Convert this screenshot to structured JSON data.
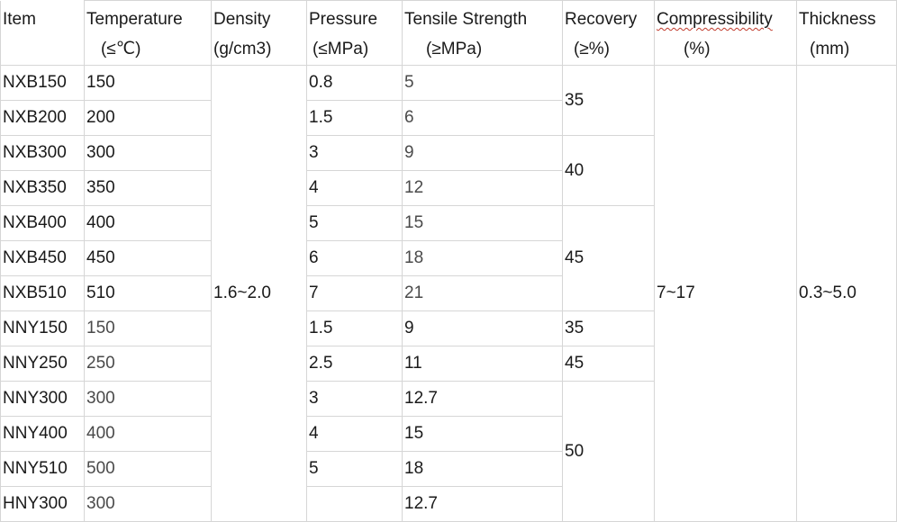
{
  "headers": [
    {
      "line1": "Item",
      "line2": ""
    },
    {
      "line1": "Temperature",
      "line2": "(≤℃)"
    },
    {
      "line1": "Density",
      "line2": "(g/cm3)"
    },
    {
      "line1": "Pressure",
      "line2": "(≤MPa)"
    },
    {
      "line1": "Tensile Strength",
      "line2": "(≥MPa)"
    },
    {
      "line1": "Recovery",
      "line2": "(≥%)"
    },
    {
      "line1": "Compressibility",
      "line2": "(%)"
    },
    {
      "line1": "Thickness",
      "line2": "(mm)"
    }
  ],
  "rows": [
    {
      "item": "NXB150",
      "temperature": "150",
      "pressure": "0.8",
      "tensile": "5"
    },
    {
      "item": "NXB200",
      "temperature": "200",
      "pressure": "1.5",
      "tensile": "6"
    },
    {
      "item": "NXB300",
      "temperature": "300",
      "pressure": "3",
      "tensile": "9"
    },
    {
      "item": "NXB350",
      "temperature": "350",
      "pressure": "4",
      "tensile": "12"
    },
    {
      "item": "NXB400",
      "temperature": "400",
      "pressure": "5",
      "tensile": "15"
    },
    {
      "item": "NXB450",
      "temperature": "450",
      "pressure": "6",
      "tensile": "18"
    },
    {
      "item": "NXB510",
      "temperature": "510",
      "pressure": "7",
      "tensile": "21"
    },
    {
      "item": "NNY150",
      "temperature": "150",
      "pressure": "1.5",
      "tensile": "9"
    },
    {
      "item": "NNY250",
      "temperature": "250",
      "pressure": "2.5",
      "tensile": "11"
    },
    {
      "item": "NNY300",
      "temperature": "300",
      "pressure": "3",
      "tensile": "12.7"
    },
    {
      "item": "NNY400",
      "temperature": "400",
      "pressure": "4",
      "tensile": "15"
    },
    {
      "item": "NNY510",
      "temperature": "500",
      "pressure": "5",
      "tensile": "18"
    },
    {
      "item": "HNY300",
      "temperature": "300",
      "pressure": "",
      "tensile": "12.7"
    }
  ],
  "merged": {
    "density": "1.6~2.0",
    "recovery": [
      "35",
      "40",
      "45",
      "35",
      "45",
      "50"
    ],
    "compressibility": "7~17",
    "thickness": "0.3~5.0"
  }
}
